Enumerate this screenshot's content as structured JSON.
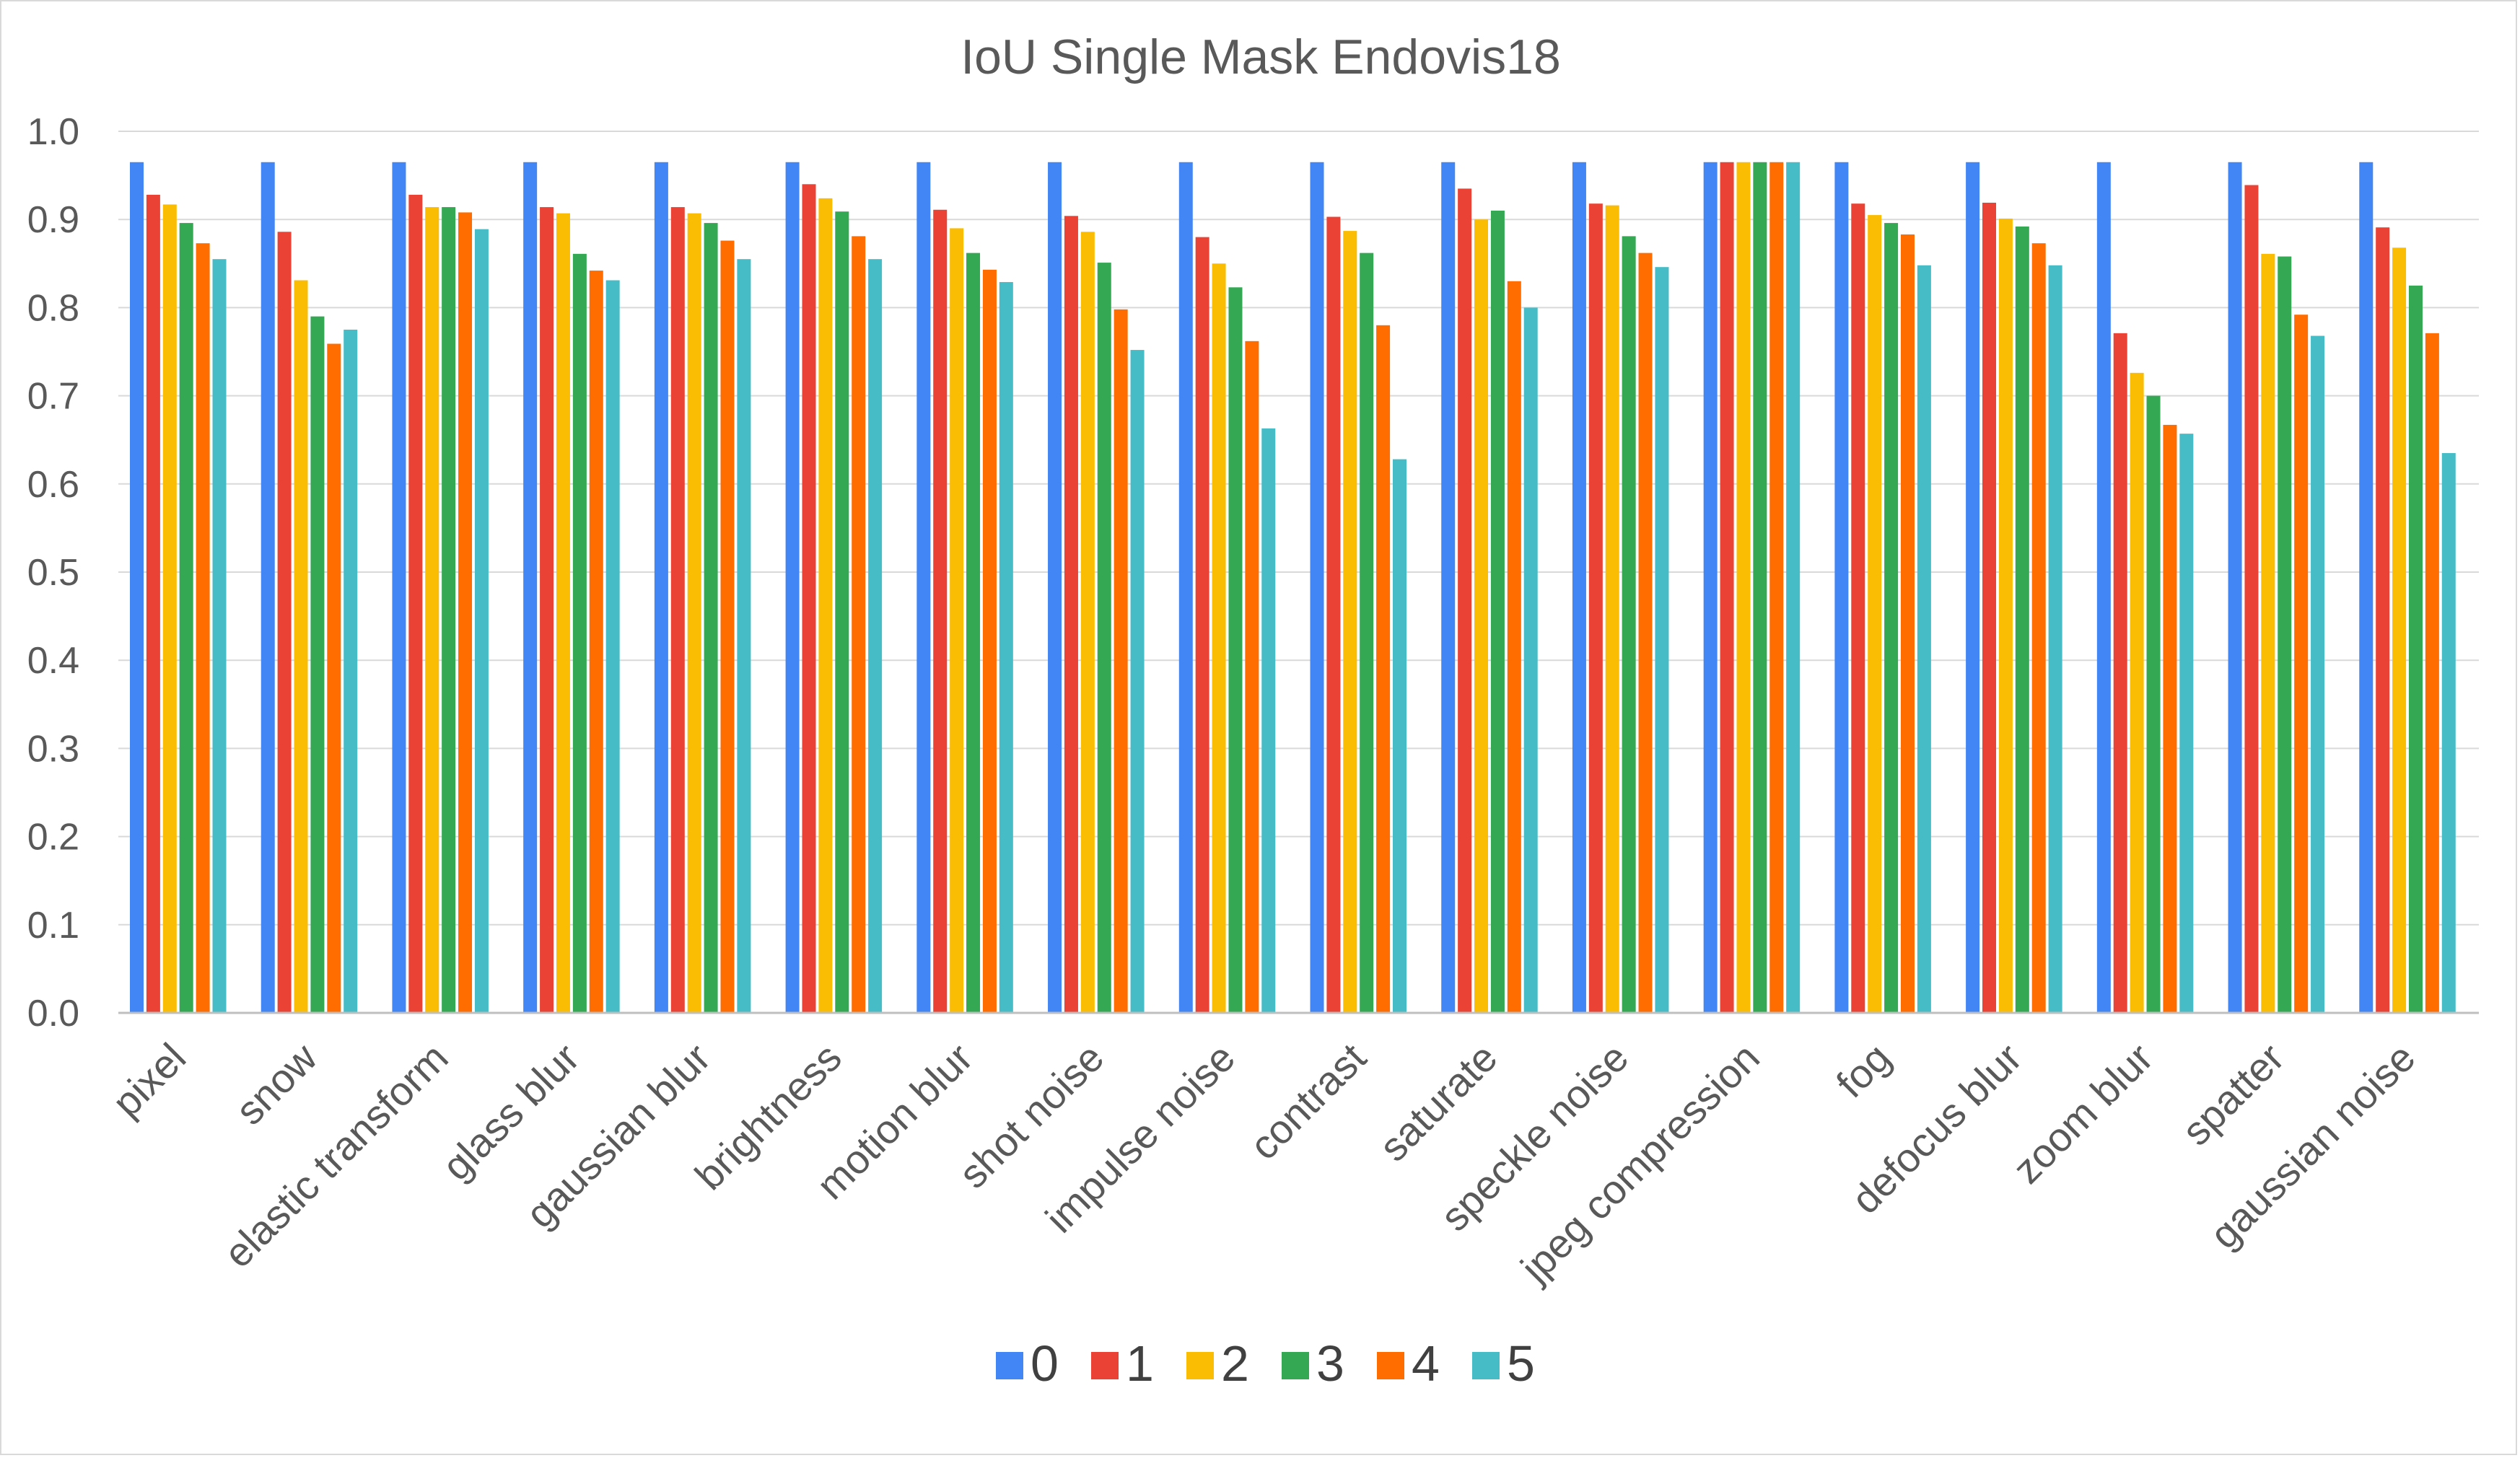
{
  "chart_data": {
    "type": "bar",
    "title": "IoU  Single Mask Endovis18",
    "xlabel": "",
    "ylabel": "",
    "ylim": [
      0,
      1.0
    ],
    "yticks": [
      "0.0",
      "0.1",
      "0.2",
      "0.3",
      "0.4",
      "0.5",
      "0.6",
      "0.7",
      "0.8",
      "0.9",
      "1.0"
    ],
    "grid": true,
    "legend_position": "bottom",
    "categories": [
      "pixel",
      "snow",
      "elastic  transform",
      "glass  blur",
      "gaussian blur",
      "brightness",
      "motion blur",
      "shot noise",
      "impulse noise",
      "contrast",
      "saturate",
      "speckle noise",
      "jpeg compression",
      "fog",
      "defocus blur",
      "zoom blur",
      "spatter",
      "gaussian noise"
    ],
    "series": [
      {
        "name": "0",
        "color": "#4285f4",
        "values": [
          0.965,
          0.965,
          0.965,
          0.965,
          0.965,
          0.965,
          0.965,
          0.965,
          0.965,
          0.965,
          0.965,
          0.965,
          0.965,
          0.965,
          0.965,
          0.965,
          0.965,
          0.965
        ]
      },
      {
        "name": "1",
        "color": "#ea4335",
        "values": [
          0.928,
          0.886,
          0.928,
          0.914,
          0.914,
          0.94,
          0.911,
          0.904,
          0.88,
          0.903,
          0.935,
          0.918,
          0.965,
          0.918,
          0.919,
          0.771,
          0.939,
          0.891
        ]
      },
      {
        "name": "2",
        "color": "#fbbc04",
        "values": [
          0.917,
          0.831,
          0.914,
          0.907,
          0.907,
          0.924,
          0.89,
          0.886,
          0.85,
          0.887,
          0.9,
          0.916,
          0.965,
          0.905,
          0.901,
          0.726,
          0.861,
          0.868
        ]
      },
      {
        "name": "3",
        "color": "#34a853",
        "values": [
          0.896,
          0.79,
          0.914,
          0.861,
          0.896,
          0.909,
          0.862,
          0.851,
          0.823,
          0.862,
          0.91,
          0.881,
          0.965,
          0.896,
          0.892,
          0.7,
          0.858,
          0.825
        ]
      },
      {
        "name": "4",
        "color": "#ff6d01",
        "values": [
          0.873,
          0.759,
          0.908,
          0.842,
          0.876,
          0.881,
          0.843,
          0.798,
          0.762,
          0.78,
          0.83,
          0.862,
          0.965,
          0.883,
          0.873,
          0.667,
          0.792,
          0.771
        ]
      },
      {
        "name": "5",
        "color": "#46bdc6",
        "values": [
          0.855,
          0.775,
          0.889,
          0.831,
          0.855,
          0.855,
          0.829,
          0.752,
          0.663,
          0.628,
          0.8,
          0.846,
          0.965,
          0.848,
          0.848,
          0.657,
          0.768,
          0.635
        ]
      }
    ]
  }
}
